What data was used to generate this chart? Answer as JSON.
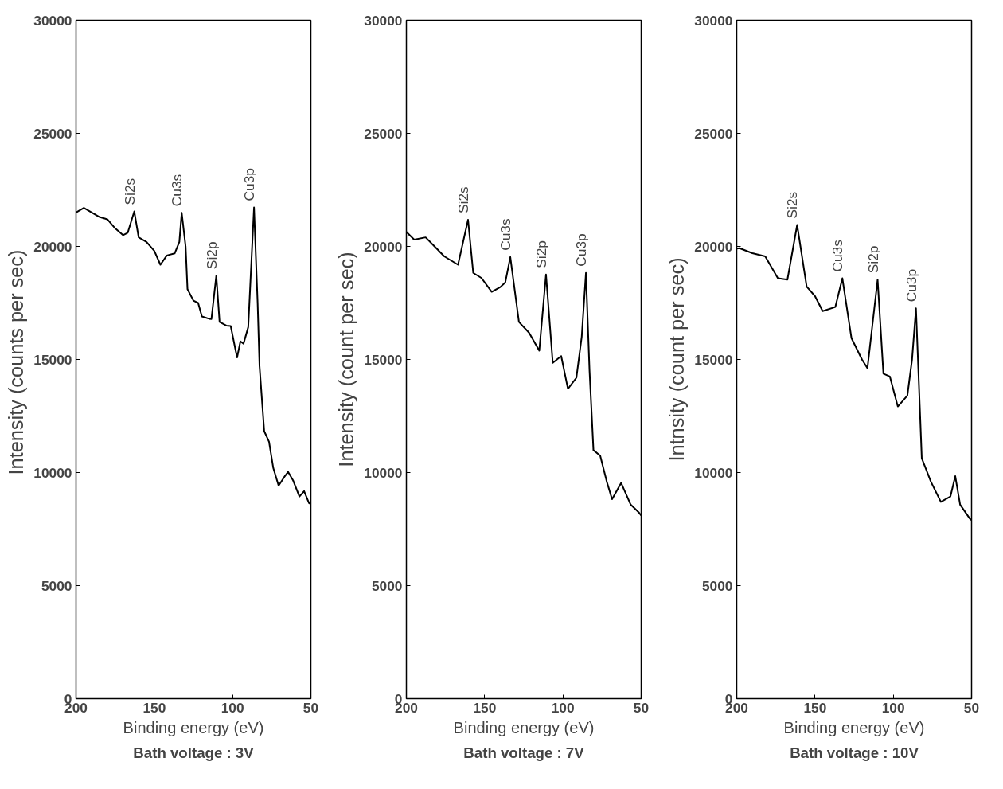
{
  "chart_data": [
    {
      "type": "line",
      "title": "Bath voltage : 3V",
      "xlabel": "Binding energy (eV)",
      "ylabel": "Intensity  (counts per sec)",
      "xlim": [
        200,
        50
      ],
      "ylim": [
        0,
        30000
      ],
      "xticks": [
        200,
        150,
        100,
        50
      ],
      "yticks": [
        0,
        5000,
        10000,
        15000,
        20000,
        25000,
        30000
      ],
      "series": [
        {
          "color": "#000000",
          "x": [
            200,
            195,
            190,
            185,
            180,
            175,
            170,
            167,
            162.8,
            160,
            155,
            150,
            146.1,
            142,
            137,
            134,
            132.5,
            130,
            128.8,
            125,
            122,
            119.6,
            115,
            113.5,
            110.4,
            108.3,
            104,
            101.2,
            98.2,
            97.1,
            95,
            93,
            90,
            86.3,
            84,
            82.8,
            79.8,
            76.7,
            74,
            70.6,
            67,
            64.5,
            61.4,
            57.3,
            54.3,
            51.2,
            50
          ],
          "values": [
            21500,
            21700,
            21500,
            21300,
            21200,
            20800,
            20500,
            20600,
            21550,
            20400,
            20200,
            19800,
            19190,
            19600,
            19690,
            20200,
            21490,
            20000,
            18110,
            17600,
            17500,
            16900,
            16800,
            16790,
            18710,
            16660,
            16500,
            16480,
            15450,
            15090,
            15800,
            15700,
            16430,
            21725,
            17500,
            14730,
            11830,
            11360,
            10200,
            9420,
            9800,
            10030,
            9660,
            8940,
            9180,
            8650,
            8600
          ]
        }
      ],
      "annotations": [
        {
          "text": "Si2s",
          "x": 162.8,
          "y": 21550
        },
        {
          "text": "Cu3s",
          "x": 132.5,
          "y": 21490
        },
        {
          "text": "Si2p",
          "x": 110.4,
          "y": 18710
        },
        {
          "text": "Cu3p",
          "x": 86.3,
          "y": 21725
        }
      ]
    },
    {
      "type": "line",
      "title": "Bath voltage : 7V",
      "xlabel": "Binding energy (eV)",
      "ylabel": "Intensity (count per sec)",
      "xlim": [
        200,
        50
      ],
      "ylim": [
        0,
        30000
      ],
      "xticks": [
        200,
        150,
        100,
        50
      ],
      "yticks": [
        0,
        5000,
        10000,
        15000,
        20000,
        25000,
        30000
      ],
      "series": [
        {
          "color": "#000000",
          "x": [
            200,
            195,
            187.7,
            182,
            175.8,
            167,
            160.6,
            157.3,
            152,
            145.5,
            140,
            136.8,
            133.6,
            128.1,
            121.6,
            115.1,
            110.8,
            106.5,
            101.1,
            96.8,
            91.4,
            88,
            85.3,
            83,
            80.5,
            76.2,
            72,
            68.6,
            62.8,
            56.7,
            51.3,
            50
          ],
          "values": [
            20640,
            20300,
            20400,
            20000,
            19560,
            19190,
            21180,
            18830,
            18600,
            17990,
            18200,
            18410,
            19530,
            16660,
            16180,
            15390,
            18760,
            14850,
            15150,
            13700,
            14190,
            16000,
            18830,
            14500,
            10990,
            10750,
            9600,
            8820,
            9540,
            8580,
            8220,
            8100
          ]
        }
      ],
      "annotations": [
        {
          "text": "Si2s",
          "x": 160.6,
          "y": 21180
        },
        {
          "text": "Cu3s",
          "x": 133.6,
          "y": 19530
        },
        {
          "text": "Si2p",
          "x": 110.8,
          "y": 18760
        },
        {
          "text": "Cu3p",
          "x": 85.3,
          "y": 18830
        }
      ]
    },
    {
      "type": "line",
      "title": "Bath voltage : 10V",
      "xlabel": "Binding energy (eV)",
      "ylabel": "Intnsity (count per sec)",
      "xlim": [
        200,
        50
      ],
      "ylim": [
        0,
        30000
      ],
      "xticks": [
        200,
        150,
        100,
        50
      ],
      "yticks": [
        0,
        5000,
        10000,
        15000,
        20000,
        25000,
        30000
      ],
      "series": [
        {
          "color": "#000000",
          "x": [
            200,
            198.2,
            190,
            181.8,
            173.7,
            167.6,
            161.4,
            155.3,
            150,
            145.1,
            137,
            132.5,
            126.7,
            120,
            116.5,
            110,
            106.3,
            102.2,
            97.1,
            91,
            88,
            85.5,
            81.8,
            76,
            69.6,
            63.5,
            60.4,
            57.3,
            51.2,
            50
          ],
          "values": [
            19900,
            19920,
            19700,
            19560,
            18590,
            18530,
            20950,
            18220,
            17800,
            17140,
            17320,
            18590,
            15940,
            15000,
            14610,
            18530,
            14370,
            14250,
            12920,
            13400,
            15000,
            17260,
            10630,
            9600,
            8700,
            8940,
            9840,
            8580,
            7970,
            7900
          ]
        }
      ],
      "annotations": [
        {
          "text": "Si2s",
          "x": 161.4,
          "y": 20950
        },
        {
          "text": "Cu3s",
          "x": 132.5,
          "y": 18590
        },
        {
          "text": "Si2p",
          "x": 110,
          "y": 18530
        },
        {
          "text": "Cu3p",
          "x": 85.5,
          "y": 17260
        }
      ]
    }
  ]
}
